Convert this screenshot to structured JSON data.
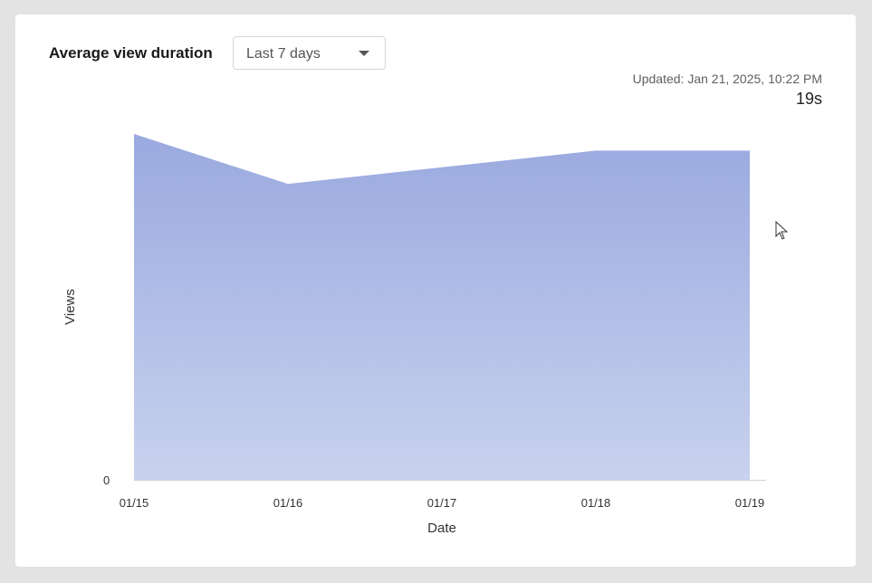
{
  "card": {
    "title": "Average view duration",
    "range_select": {
      "selected": "Last 7 days"
    },
    "updated": "Updated: Jan 21, 2025, 10:22 PM",
    "metric_value": "19s"
  },
  "chart_data": {
    "type": "area",
    "title": "Average view duration",
    "xlabel": "Date",
    "ylabel": "Views",
    "x": [
      "01/15",
      "01/16",
      "01/17",
      "01/18",
      "01/19"
    ],
    "series": [
      {
        "values": [
          20.8,
          17.8,
          18.8,
          19.8,
          19.8
        ]
      }
    ],
    "ylim": [
      0,
      22
    ],
    "y_ticks": [
      "0"
    ],
    "grid": false,
    "legend": "none",
    "colors": {
      "fill_top": "#9aa9df",
      "fill_bottom": "#c8d2ee",
      "axis": "#d0d0d0"
    }
  }
}
